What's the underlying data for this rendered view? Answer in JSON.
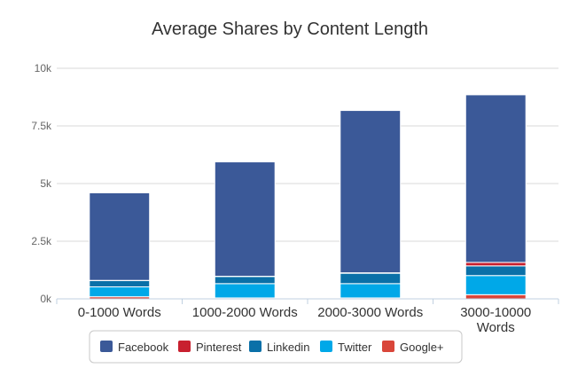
{
  "chart_data": {
    "type": "bar",
    "stacked": true,
    "title": "Average Shares by Content Length",
    "categories": [
      "0-1000 Words",
      "1000-2000 Words",
      "2000-3000 Words",
      "3000-10000 Words"
    ],
    "y_ticks": [
      "0k",
      "2.5k",
      "5k",
      "7.5k",
      "10k"
    ],
    "ylim": [
      0,
      10000
    ],
    "grid": true,
    "legend_position": "bottom",
    "series": [
      {
        "name": "Google+",
        "color": "#d9463a",
        "values": [
          90,
          40,
          40,
          180
        ]
      },
      {
        "name": "Twitter",
        "color": "#00a8e8",
        "values": [
          430,
          620,
          620,
          830
        ]
      },
      {
        "name": "Linkedin",
        "color": "#0a70a8",
        "values": [
          270,
          310,
          450,
          420
        ]
      },
      {
        "name": "Pinterest",
        "color": "#c8202f",
        "values": [
          10,
          10,
          20,
          150
        ]
      },
      {
        "name": "Facebook",
        "color": "#3b5998",
        "values": [
          3800,
          4960,
          7040,
          7270
        ]
      }
    ],
    "legend_order": [
      "Facebook",
      "Pinterest",
      "Linkedin",
      "Twitter",
      "Google+"
    ]
  }
}
